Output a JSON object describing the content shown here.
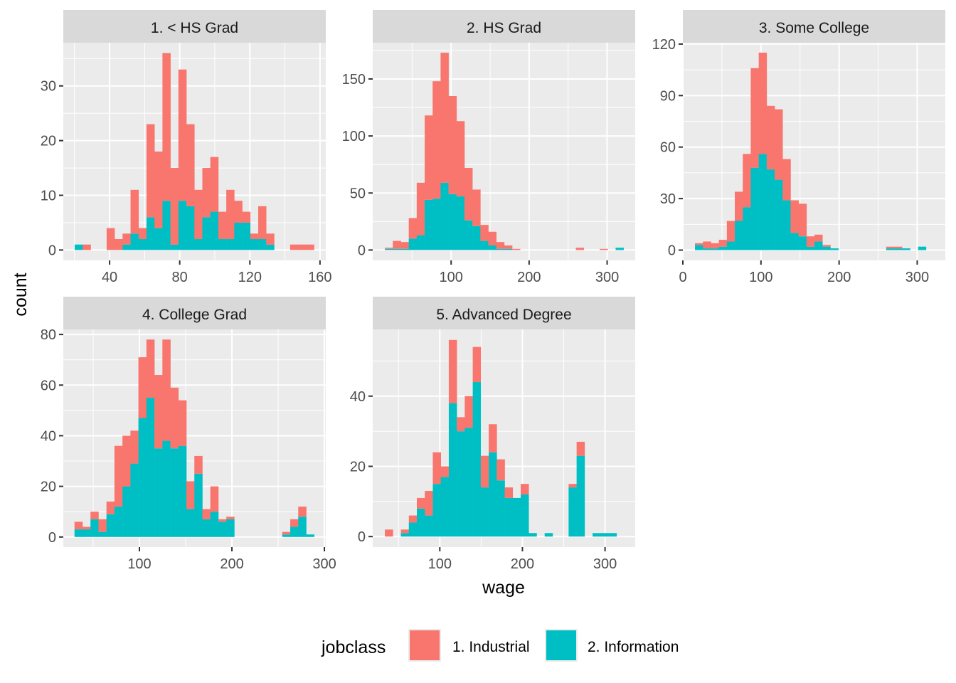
{
  "chart_data": {
    "type": "bar",
    "subtype": "stacked-histogram-faceted",
    "xlabel": "wage",
    "ylabel": "count",
    "grid": true,
    "legend": {
      "title": "jobclass",
      "placement": "bottom",
      "entries": [
        {
          "label": "1. Industrial",
          "color": "#F8766D"
        },
        {
          "label": "2. Information",
          "color": "#00BFC4"
        }
      ]
    },
    "series_names": [
      "1. Industrial",
      "2. Information"
    ],
    "facets": [
      {
        "title": "1. < HS Grad",
        "xlim": [
          13.6,
          163.3
        ],
        "ylim": [
          -1.9,
          37.9
        ],
        "xticks": [
          40,
          80,
          120,
          160
        ],
        "yticks": [
          0,
          10,
          20,
          30
        ],
        "bin_start": 20.1,
        "bin_width": 4.55,
        "industrial": [
          0,
          1,
          0,
          0,
          4,
          2,
          2,
          8,
          2,
          17,
          14,
          27,
          14,
          24,
          15,
          9,
          9,
          10,
          5,
          9,
          4,
          2,
          1,
          6,
          2,
          0,
          0,
          1,
          1,
          1
        ],
        "information": [
          1,
          0,
          0,
          0,
          0,
          0,
          1,
          3,
          2,
          6,
          4,
          9,
          1,
          9,
          8,
          2,
          6,
          7,
          2,
          2,
          5,
          5,
          2,
          2,
          1,
          0,
          0,
          0,
          0,
          0
        ]
      },
      {
        "title": "2. HS Grad",
        "xlim": [
          -0.5,
          336
        ],
        "ylim": [
          -9.1,
          181.8
        ],
        "xticks": [
          100,
          200,
          300
        ],
        "yticks": [
          0,
          50,
          100,
          150
        ],
        "bin_start": 15.1,
        "bin_width": 10.2,
        "industrial": [
          1,
          7,
          6,
          18,
          46,
          74,
          103,
          114,
          86,
          66,
          46,
          32,
          14,
          12,
          6,
          3,
          1,
          0,
          0,
          0,
          0,
          0,
          0,
          0,
          2,
          0,
          0,
          1,
          0,
          0
        ],
        "information": [
          1,
          1,
          1,
          10,
          13,
          44,
          45,
          59,
          49,
          47,
          26,
          21,
          8,
          4,
          1,
          1,
          0,
          0,
          0,
          0,
          0,
          0,
          0,
          0,
          0,
          0,
          0,
          0,
          0,
          2
        ]
      },
      {
        "title": "3. Some College",
        "xlim": [
          0,
          336
        ],
        "ylim": [
          -6.0,
          120.8
        ],
        "xticks": [
          0,
          100,
          200,
          300
        ],
        "yticks": [
          0,
          30,
          60,
          90,
          120
        ],
        "bin_start": 15.5,
        "bin_width": 10.2,
        "industrial": [
          1,
          4,
          3,
          4,
          12,
          17,
          31,
          58,
          59,
          37,
          41,
          24,
          19,
          19,
          6,
          4,
          1,
          0,
          0,
          0,
          0,
          0,
          0,
          0,
          1,
          1,
          0,
          0,
          0,
          0
        ],
        "information": [
          3,
          1,
          1,
          2,
          5,
          17,
          25,
          48,
          56,
          47,
          41,
          29,
          10,
          8,
          2,
          5,
          2,
          1,
          0,
          0,
          0,
          0,
          0,
          0,
          1,
          1,
          1,
          0,
          2,
          0
        ]
      },
      {
        "title": "4. College Grad",
        "xlim": [
          17.7,
          301.5
        ],
        "ylim": [
          -4.0,
          82.0
        ],
        "xticks": [
          100,
          200,
          300
        ],
        "yticks": [
          0,
          20,
          40,
          60,
          80
        ],
        "bin_start": 29.8,
        "bin_width": 8.64,
        "industrial": [
          3,
          1,
          3,
          5,
          5,
          24,
          20,
          13,
          24,
          23,
          29,
          40,
          24,
          18,
          11,
          7,
          4,
          10,
          1,
          1,
          0,
          0,
          0,
          0,
          0,
          0,
          1,
          3,
          4,
          0
        ],
        "information": [
          3,
          3,
          7,
          2,
          9,
          12,
          20,
          29,
          47,
          55,
          35,
          38,
          35,
          36,
          11,
          25,
          7,
          10,
          6,
          7,
          0,
          0,
          0,
          0,
          0,
          0,
          1,
          4,
          8,
          1
        ]
      },
      {
        "title": "5. Advanced Degree",
        "xlim": [
          18.8,
          336.5
        ],
        "ylim": [
          -3.0,
          59.0
        ],
        "xticks": [
          100,
          200,
          300
        ],
        "yticks": [
          0,
          20,
          40
        ],
        "bin_start": 33.5,
        "bin_width": 9.67,
        "industrial": [
          2,
          0,
          1,
          2,
          3,
          7,
          9,
          3,
          18,
          4,
          9,
          10,
          9,
          8,
          6,
          3,
          0,
          3,
          0,
          0,
          0,
          0,
          0,
          1,
          4,
          0,
          0,
          0,
          0,
          0
        ],
        "information": [
          0,
          0,
          1,
          4,
          8,
          6,
          15,
          17,
          38,
          30,
          31,
          44,
          14,
          24,
          16,
          11,
          11,
          12,
          1,
          0,
          1,
          0,
          0,
          14,
          23,
          0,
          1,
          1,
          1,
          0
        ]
      }
    ]
  }
}
